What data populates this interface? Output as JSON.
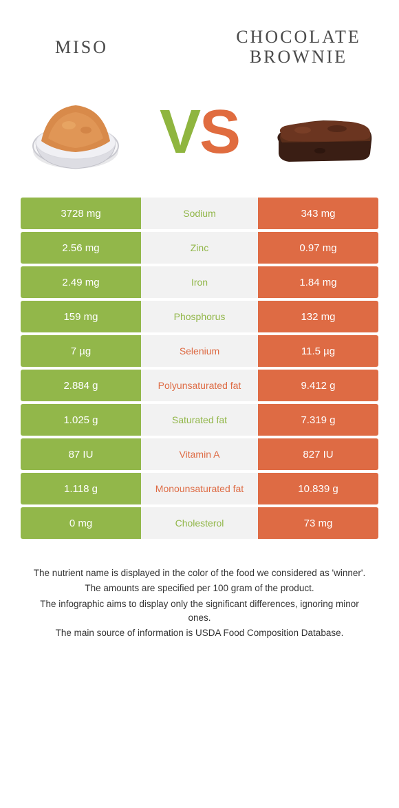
{
  "colors": {
    "left_food": "#92b74a",
    "right_food": "#de6b44",
    "mid_bg": "#f2f2f2",
    "text_dark": "#4a4a4a"
  },
  "header": {
    "left_title": "MISO",
    "right_title": "CHOCOLATE BROWNIE",
    "vs_v": "V",
    "vs_s": "S"
  },
  "rows": [
    {
      "left": "3728 mg",
      "name": "Sodium",
      "right": "343 mg",
      "winner": "left"
    },
    {
      "left": "2.56 mg",
      "name": "Zinc",
      "right": "0.97 mg",
      "winner": "left"
    },
    {
      "left": "2.49 mg",
      "name": "Iron",
      "right": "1.84 mg",
      "winner": "left"
    },
    {
      "left": "159 mg",
      "name": "Phosphorus",
      "right": "132 mg",
      "winner": "left"
    },
    {
      "left": "7 µg",
      "name": "Selenium",
      "right": "11.5 µg",
      "winner": "right"
    },
    {
      "left": "2.884 g",
      "name": "Polyunsaturated fat",
      "right": "9.412 g",
      "winner": "right"
    },
    {
      "left": "1.025 g",
      "name": "Saturated fat",
      "right": "7.319 g",
      "winner": "left"
    },
    {
      "left": "87 IU",
      "name": "Vitamin A",
      "right": "827 IU",
      "winner": "right"
    },
    {
      "left": "1.118 g",
      "name": "Monounsaturated fat",
      "right": "10.839 g",
      "winner": "right"
    },
    {
      "left": "0 mg",
      "name": "Cholesterol",
      "right": "73 mg",
      "winner": "left"
    }
  ],
  "footnotes": [
    "The nutrient name is displayed in the color of the food we considered as 'winner'.",
    "The amounts are specified per 100 gram of the product.",
    "The infographic aims to display only the significant differences, ignoring minor ones.",
    "The main source of information is USDA Food Composition Database."
  ]
}
